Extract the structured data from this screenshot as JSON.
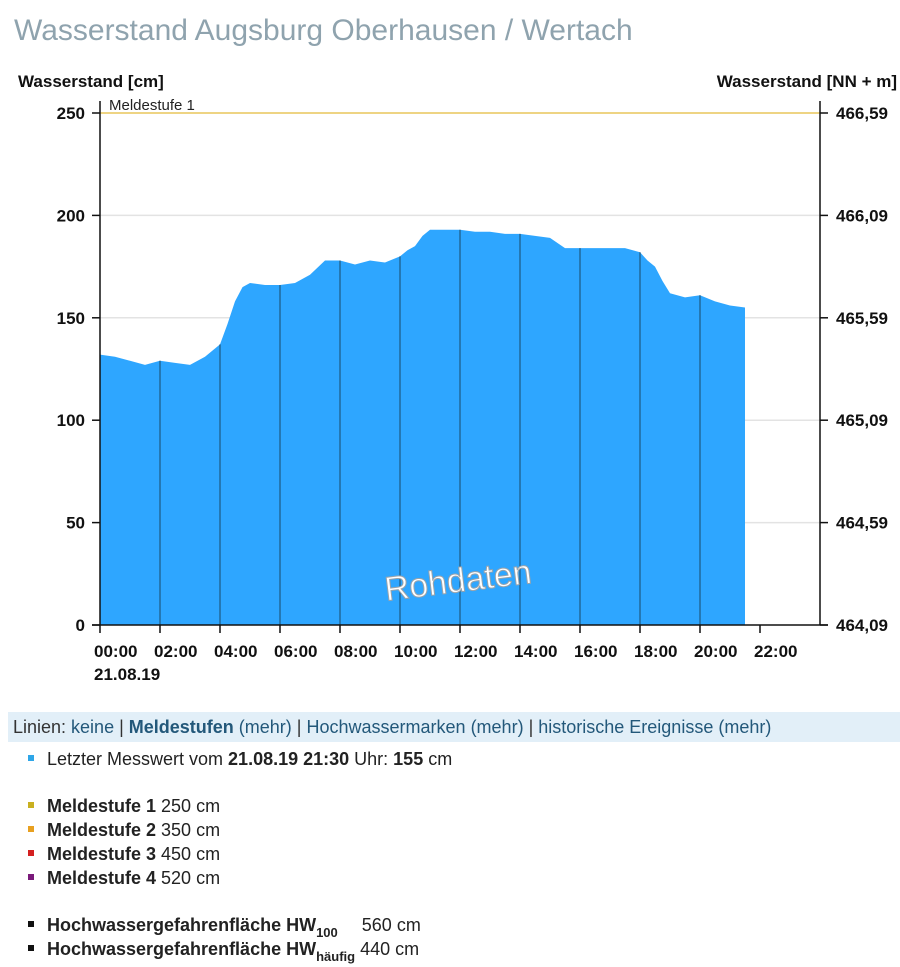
{
  "page_title": "Wasserstand Augsburg Oberhausen / Wertach",
  "chart_data": {
    "type": "area",
    "ylabel_left": "Wasserstand [cm]",
    "ylabel_right": "Wasserstand [NN + m]",
    "ylim": [
      0,
      250
    ],
    "yticks_left": [
      "0",
      "50",
      "100",
      "150",
      "200",
      "250"
    ],
    "yticks_right": [
      "464,09",
      "464,59",
      "465,09",
      "465,59",
      "466,09",
      "466,59"
    ],
    "xlim": [
      0,
      24
    ],
    "xtick_hours": [
      0,
      2,
      4,
      6,
      8,
      10,
      12,
      14,
      16,
      18,
      20,
      22
    ],
    "xticks": [
      "00:00",
      "02:00",
      "04:00",
      "06:00",
      "08:00",
      "10:00",
      "12:00",
      "14:00",
      "16:00",
      "18:00",
      "20:00",
      "22:00"
    ],
    "date_label": "21.08.19",
    "grid": true,
    "fill_color": "#2ea6ff",
    "threshold_color": "#e8c65a",
    "thresholds": [
      {
        "label": "Meldestufe 1",
        "value": 250
      }
    ],
    "watermark": "Rohdaten",
    "series": [
      {
        "x": [
          0,
          0.5,
          1,
          1.5,
          2,
          2.5,
          3,
          3.5,
          4,
          4.25,
          4.5,
          4.75,
          5,
          5.5,
          6,
          6.5,
          7,
          7.5,
          8,
          8.5,
          9,
          9.5,
          10,
          10.25,
          10.5,
          10.75,
          11,
          11.5,
          12,
          12.5,
          13,
          13.5,
          14,
          14.5,
          15,
          15.5,
          16,
          16.5,
          17,
          17.5,
          18,
          18.25,
          18.5,
          18.75,
          19,
          19.5,
          20,
          20.5,
          21,
          21.5
        ],
        "values": [
          132,
          131,
          129,
          127,
          129,
          128,
          127,
          131,
          137,
          147,
          158,
          165,
          167,
          166,
          166,
          167,
          171,
          178,
          178,
          176,
          178,
          177,
          180,
          183,
          185,
          190,
          193,
          193,
          193,
          192,
          192,
          191,
          191,
          190,
          189,
          184,
          184,
          184,
          184,
          184,
          182,
          178,
          175,
          168,
          162,
          160,
          161,
          158,
          156,
          155
        ]
      }
    ]
  },
  "lines_bar": {
    "prefix": "Linien: ",
    "keine": "keine",
    "sep": " | ",
    "meldestufen": "Meldestufen",
    "mehr": "(mehr)",
    "hochwassermarken": "Hochwassermarken",
    "historische": "historische Ereignisse"
  },
  "last_value": {
    "prefix": "Letzter Messwert vom ",
    "datetime": "21.08.19 21:30",
    "mid": " Uhr: ",
    "value": "155",
    "unit": " cm",
    "color": "#2ea6e8"
  },
  "meldestufen": [
    {
      "label": "Meldestufe 1",
      "value": " 250 cm",
      "color": "#c9b020"
    },
    {
      "label": "Meldestufe 2",
      "value": " 350 cm",
      "color": "#e8a020"
    },
    {
      "label": "Meldestufe 3",
      "value": " 450 cm",
      "color": "#d42020"
    },
    {
      "label": "Meldestufe 4",
      "value": " 520 cm",
      "color": "#7a1a7a"
    }
  ],
  "hochwasser": [
    {
      "label": "Hochwassergefahrenfläche HW",
      "sub": "100",
      "value": "560 cm",
      "color": "#111111"
    },
    {
      "label": "Hochwassergefahrenfläche HW",
      "sub": "häufig",
      "value": "440 cm",
      "color": "#111111"
    }
  ]
}
